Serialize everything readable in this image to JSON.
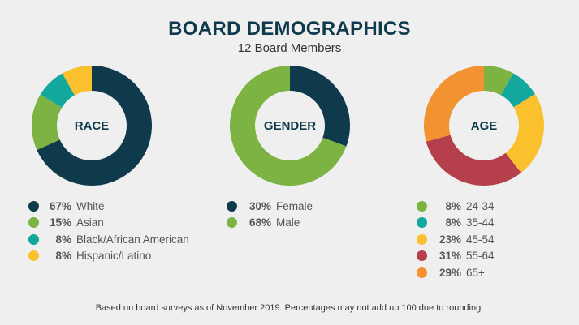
{
  "title": "BOARD DEMOGRAPHICS",
  "subtitle": "12 Board Members",
  "footnote": "Based on board surveys as of November 2019. Percentages may not add up 100 due to rounding.",
  "chart_data": [
    {
      "type": "pie",
      "title": "RACE",
      "series": [
        {
          "label": "White",
          "pct_label": "67%",
          "value": 67,
          "color": "#0f3a4c"
        },
        {
          "label": "Asian",
          "pct_label": "15%",
          "value": 15,
          "color": "#7cb342"
        },
        {
          "label": "Black/African American",
          "pct_label": "8%",
          "value": 8,
          "color": "#13a89e"
        },
        {
          "label": "Hispanic/Latino",
          "pct_label": "8%",
          "value": 8,
          "color": "#fbc02d"
        }
      ]
    },
    {
      "type": "pie",
      "title": "GENDER",
      "series": [
        {
          "label": "Female",
          "pct_label": "30%",
          "value": 30,
          "color": "#0f3a4c"
        },
        {
          "label": "Male",
          "pct_label": "68%",
          "value": 68,
          "color": "#7cb342"
        }
      ]
    },
    {
      "type": "pie",
      "title": "AGE",
      "series": [
        {
          "label": "24-34",
          "pct_label": "8%",
          "value": 8,
          "color": "#7cb342"
        },
        {
          "label": "35-44",
          "pct_label": "8%",
          "value": 8,
          "color": "#13a89e"
        },
        {
          "label": "45-54",
          "pct_label": "23%",
          "value": 23,
          "color": "#fbc02d"
        },
        {
          "label": "55-64",
          "pct_label": "31%",
          "value": 31,
          "color": "#b5404b"
        },
        {
          "label": "65+",
          "pct_label": "29%",
          "value": 29,
          "color": "#f39230"
        }
      ]
    }
  ]
}
